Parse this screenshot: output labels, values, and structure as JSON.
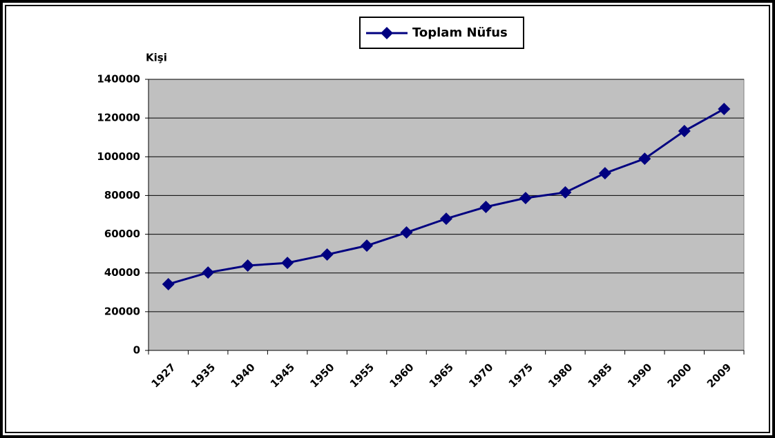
{
  "chart_data": {
    "type": "line",
    "y_label": "Kişi",
    "categories": [
      "1927",
      "1935",
      "1940",
      "1945",
      "1950",
      "1955",
      "1960",
      "1965",
      "1970",
      "1975",
      "1980",
      "1985",
      "1990",
      "2000",
      "2009"
    ],
    "series": [
      {
        "name": "Toplam Nüfus",
        "color": "#000080",
        "values": [
          34200,
          40200,
          43800,
          45200,
          49500,
          54100,
          60900,
          68000,
          74100,
          78700,
          81600,
          91500,
          99000,
          113300,
          124700
        ]
      }
    ],
    "ylim": [
      0,
      140000
    ],
    "yticks": [
      0,
      20000,
      40000,
      60000,
      80000,
      100000,
      120000,
      140000
    ],
    "grid": true,
    "legend": "top"
  }
}
